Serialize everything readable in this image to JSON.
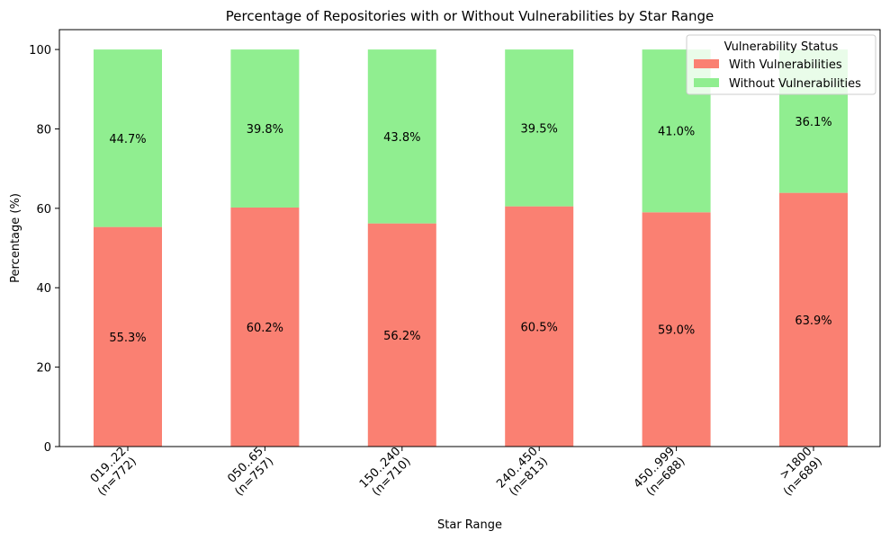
{
  "chart_data": {
    "type": "bar",
    "stacked": true,
    "title": "Percentage of Repositories with or Without Vulnerabilities by Star Range",
    "xlabel": "Star Range",
    "ylabel": "Percentage (%)",
    "ylim": [
      0,
      105
    ],
    "yticks": [
      0,
      20,
      40,
      60,
      80,
      100
    ],
    "grid": false,
    "categories": [
      {
        "range": "019..22",
        "count": "(n=772)"
      },
      {
        "range": "050..65",
        "count": "(n=757)"
      },
      {
        "range": "150..240",
        "count": "(n=710)"
      },
      {
        "range": "240..450",
        "count": "(n=813)"
      },
      {
        "range": "450..999",
        "count": "(n=688)"
      },
      {
        "range": ">1800",
        "count": "(n=689)"
      }
    ],
    "series": [
      {
        "name": "With Vulnerabilities",
        "color": "#fa8072",
        "values": [
          55.3,
          60.2,
          56.2,
          60.5,
          59.0,
          63.9
        ],
        "labels": [
          "55.3%",
          "60.2%",
          "56.2%",
          "60.5%",
          "59.0%",
          "63.9%"
        ]
      },
      {
        "name": "Without Vulnerabilities",
        "color": "#90ee90",
        "values": [
          44.7,
          39.8,
          43.8,
          39.5,
          41.0,
          36.1
        ],
        "labels": [
          "44.7%",
          "39.8%",
          "43.8%",
          "39.5%",
          "41.0%",
          "36.1%"
        ]
      }
    ],
    "legend": {
      "title": "Vulnerability Status",
      "position": "top-right"
    }
  }
}
